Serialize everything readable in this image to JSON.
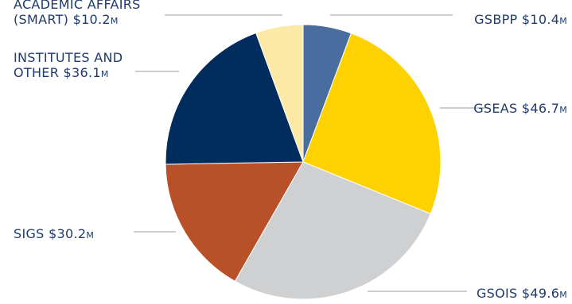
{
  "chart_data": {
    "type": "pie",
    "title": "",
    "unit": "M",
    "slices": [
      {
        "label": "GSBPP",
        "amount": "$10.4",
        "value": 10.4,
        "color": "#4a6da0"
      },
      {
        "label": "GSEAS",
        "amount": "$46.7",
        "value": 46.7,
        "color": "#fdd200"
      },
      {
        "label": "GSOIS",
        "amount": "$49.6",
        "value": 49.6,
        "color": "#cfd0d2"
      },
      {
        "label": "SIGS",
        "amount": "$30.2",
        "value": 30.2,
        "color": "#b85128"
      },
      {
        "label": "INSTITUTES AND\nOTHER",
        "amount": "$36.1",
        "value": 36.1,
        "color": "#002d5e"
      },
      {
        "label": "ACADEMIC AFFAIRS\n(SMART)",
        "amount": "$10.2",
        "value": 10.2,
        "color": "#fde9a6"
      }
    ]
  }
}
